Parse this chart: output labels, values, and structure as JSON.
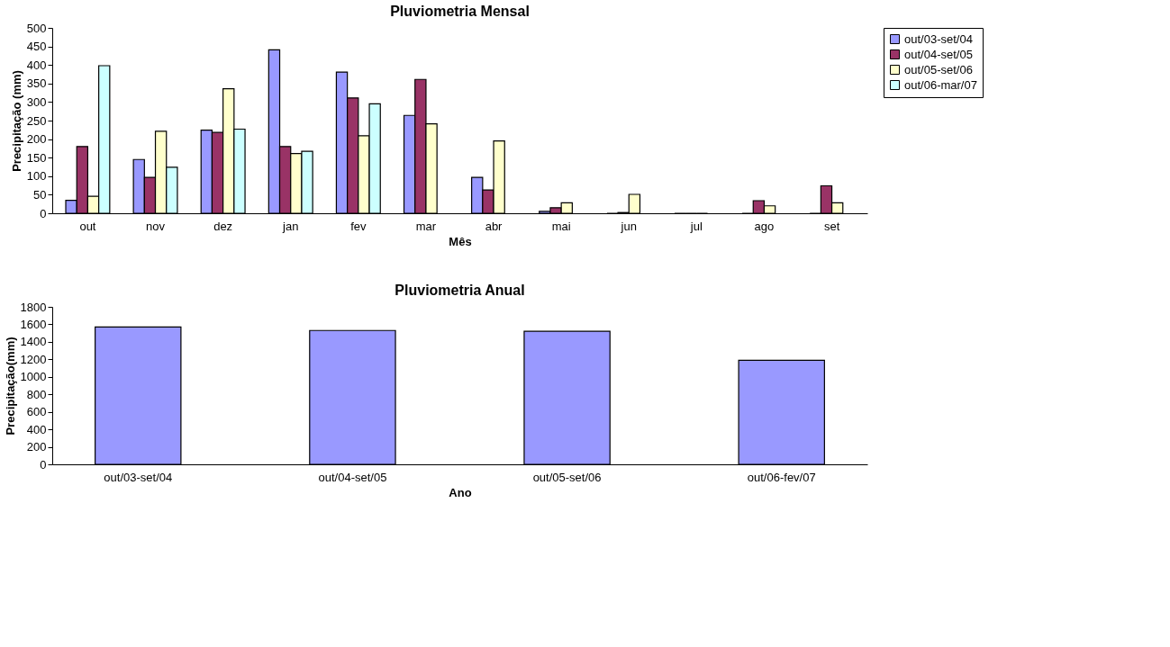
{
  "chart_data": [
    {
      "type": "bar",
      "title": "Pluviometria Mensal",
      "xlabel": "Mês",
      "ylabel": "Precipitação (mm)",
      "categories": [
        "out",
        "nov",
        "dez",
        "jan",
        "fev",
        "mar",
        "abr",
        "mai",
        "jun",
        "jul",
        "ago",
        "set"
      ],
      "series": [
        {
          "name": "out/03-set/04",
          "color": "#9999ff",
          "values": [
            35,
            145,
            224,
            441,
            381,
            264,
            97,
            5,
            0,
            0,
            0,
            0
          ]
        },
        {
          "name": "out/04-set/05",
          "color": "#993366",
          "values": [
            180,
            97,
            218,
            180,
            311,
            361,
            63,
            15,
            2,
            0,
            34,
            74
          ]
        },
        {
          "name": "out/05-set/06",
          "color": "#ffffcc",
          "values": [
            46,
            221,
            336,
            161,
            209,
            241,
            195,
            28,
            51,
            0,
            20,
            28
          ]
        },
        {
          "name": "out/06-mar/07",
          "color": "#ccffff",
          "values": [
            398,
            124,
            227,
            167,
            295,
            null,
            null,
            null,
            null,
            null,
            null,
            null
          ]
        }
      ],
      "ylim": [
        0,
        500
      ],
      "yticks": [
        0,
        50,
        100,
        150,
        200,
        250,
        300,
        350,
        400,
        450,
        500
      ],
      "legend": "right",
      "grid": false
    },
    {
      "type": "bar",
      "title": "Pluviometria Anual",
      "xlabel": "Ano",
      "ylabel": "Precipitação(mm)",
      "categories": [
        "out/03-set/04",
        "out/04-set/05",
        "out/05-set/06",
        "out/06-fev/07"
      ],
      "values": [
        1570,
        1530,
        1520,
        1190
      ],
      "color": "#9999ff",
      "ylim": [
        0,
        1800
      ],
      "yticks": [
        0,
        200,
        400,
        600,
        800,
        1000,
        1200,
        1400,
        1600,
        1800
      ],
      "grid": false
    }
  ]
}
